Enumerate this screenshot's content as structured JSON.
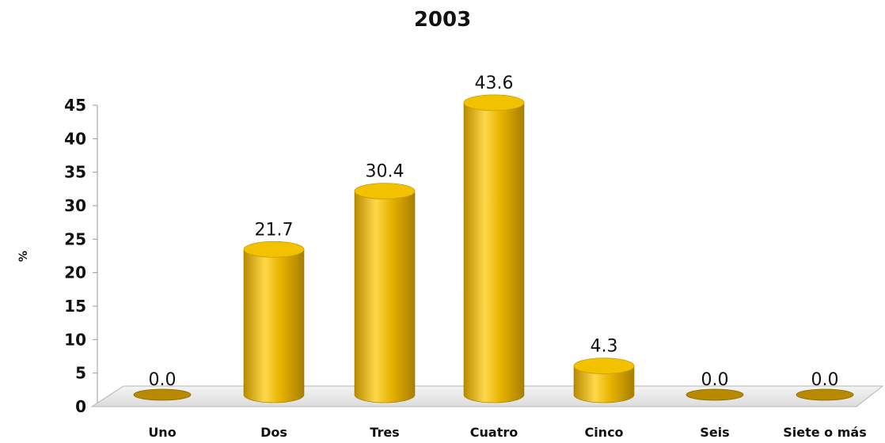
{
  "chart_data": {
    "type": "bar",
    "title": "2003",
    "ylabel": "%",
    "xlabel": "",
    "categories": [
      "Uno",
      "Dos",
      "Tres",
      "Cuatro",
      "Cinco",
      "Seis",
      "Siete o más"
    ],
    "values": [
      0.0,
      21.7,
      30.4,
      43.6,
      4.3,
      0.0,
      0.0
    ],
    "data_labels": [
      "0.0",
      "21.7",
      "30.4",
      "43.6",
      "4.3",
      "0.0",
      "0.0"
    ],
    "yticks": [
      "0",
      "5",
      "10",
      "15",
      "20",
      "25",
      "30",
      "35",
      "40",
      "45"
    ],
    "ylim": [
      0,
      45
    ],
    "grid": false,
    "legend": "none",
    "colors": {
      "bar": "#e8b400",
      "bar_light": "#ffd84a",
      "bar_dark": "#a87f00",
      "top": "#f2c200",
      "floor": "#e6e6e6"
    }
  }
}
